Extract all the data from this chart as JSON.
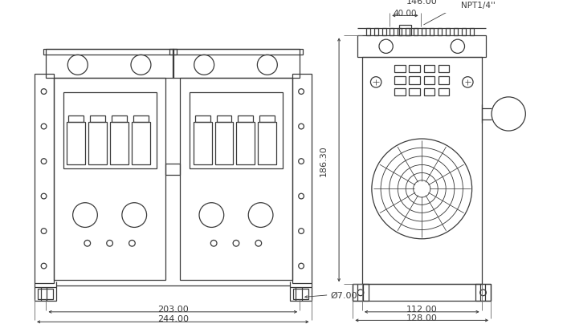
{
  "bg_color": "#ffffff",
  "lc": "#3a3a3a",
  "lw": 0.9,
  "fs": 8.0,
  "dims": {
    "front_203": "203.00",
    "front_244": "244.00",
    "front_phi7": "Ø7.00",
    "side_146": "146.00",
    "side_40": "40.00",
    "side_npt": "NPT1/4''",
    "side_186": "186.30",
    "side_112": "112.00",
    "side_128": "128.00"
  }
}
